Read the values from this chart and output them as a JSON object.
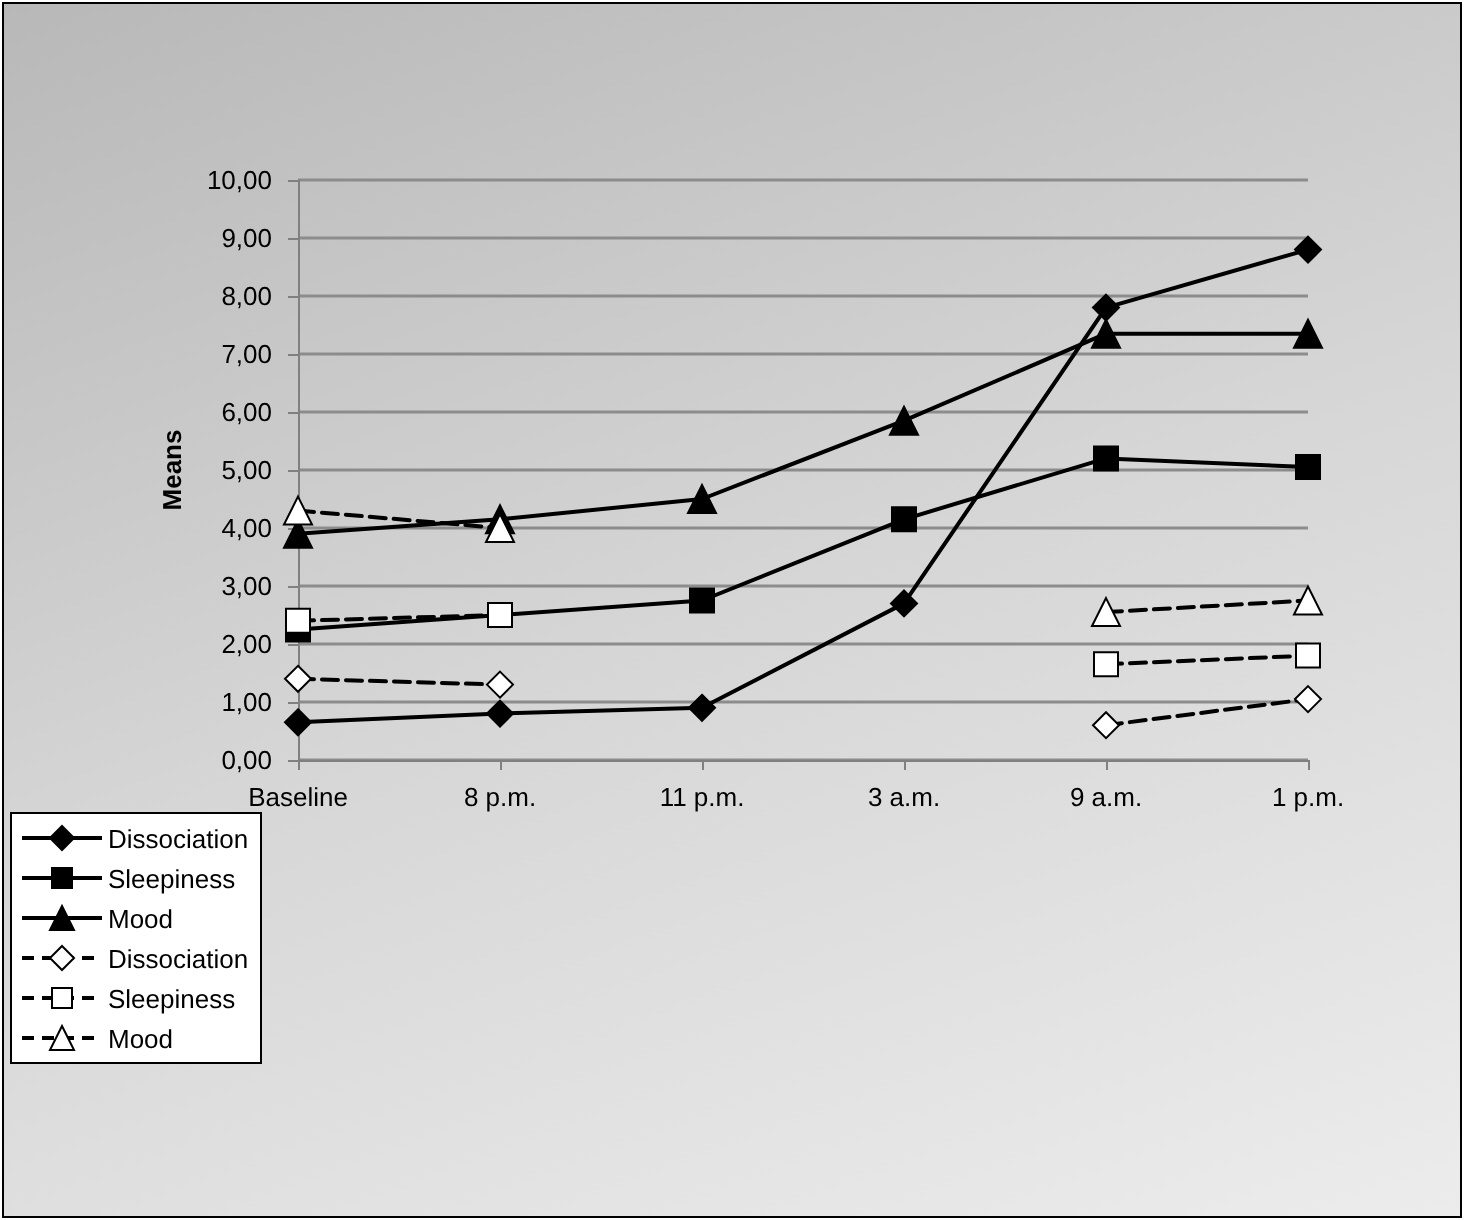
{
  "chart_data": {
    "type": "line",
    "ylabel": "Means",
    "categories": [
      "Baseline",
      "8 p.m.",
      "11 p.m.",
      "3 a.m.",
      "9 a.m.",
      "1 p.m."
    ],
    "series": [
      {
        "name": "Dissociation",
        "color": "#000000",
        "marker": "diamond",
        "line_style": "solid",
        "values": [
          0.65,
          0.8,
          0.9,
          2.7,
          7.8,
          8.8
        ]
      },
      {
        "name": "Sleepiness",
        "color": "#000000",
        "marker": "square",
        "line_style": "solid",
        "values": [
          2.25,
          2.5,
          2.75,
          4.15,
          5.2,
          5.05
        ]
      },
      {
        "name": "Mood",
        "color": "#000000",
        "marker": "triangle",
        "line_style": "solid",
        "values": [
          3.9,
          4.15,
          4.5,
          5.85,
          7.35,
          7.35
        ]
      },
      {
        "name": "Dissociation",
        "color": "#000000",
        "colors": [
          "#ffffff",
          "#ffffff",
          "#ffffff",
          "#ffffff",
          "#ffffff",
          "#ffffff"
        ],
        "marker": "diamond",
        "line_style": "dashed",
        "values": [
          1.4,
          1.3,
          null,
          null,
          0.6,
          1.05
        ]
      },
      {
        "name": "Sleepiness",
        "color": "#000000",
        "colors": [
          "#ffffff",
          "#ffffff",
          "#ffffff",
          "#ffffff",
          "#ffffff",
          "#ffffff"
        ],
        "marker": "square",
        "line_style": "dashed",
        "values": [
          2.4,
          2.5,
          null,
          null,
          1.65,
          1.8
        ]
      },
      {
        "name": "Mood",
        "color": "#000000",
        "colors": [
          "#ffffff",
          "#ffffff",
          "#ffffff",
          "#ffffff",
          "#ffffff",
          "#ffffff"
        ],
        "marker": "triangle",
        "line_style": "dashed",
        "values": [
          4.3,
          4.0,
          null,
          null,
          2.55,
          2.75
        ]
      }
    ],
    "ylim": [
      0,
      10
    ],
    "yticks": [
      {
        "value": 0,
        "label": "0,00"
      },
      {
        "value": 1,
        "label": "1,00"
      },
      {
        "value": 2,
        "label": "2,00"
      },
      {
        "value": 3,
        "label": "3,00"
      },
      {
        "value": 4,
        "label": "4,00"
      },
      {
        "value": 5,
        "label": "5,00"
      },
      {
        "value": 6,
        "label": "6,00"
      },
      {
        "value": 7,
        "label": "7,00"
      },
      {
        "value": 8,
        "label": "8,00"
      },
      {
        "value": 9,
        "label": "9,00"
      },
      {
        "value": 10,
        "label": "10,00"
      }
    ],
    "grid": "y",
    "legend": "bottom left"
  }
}
